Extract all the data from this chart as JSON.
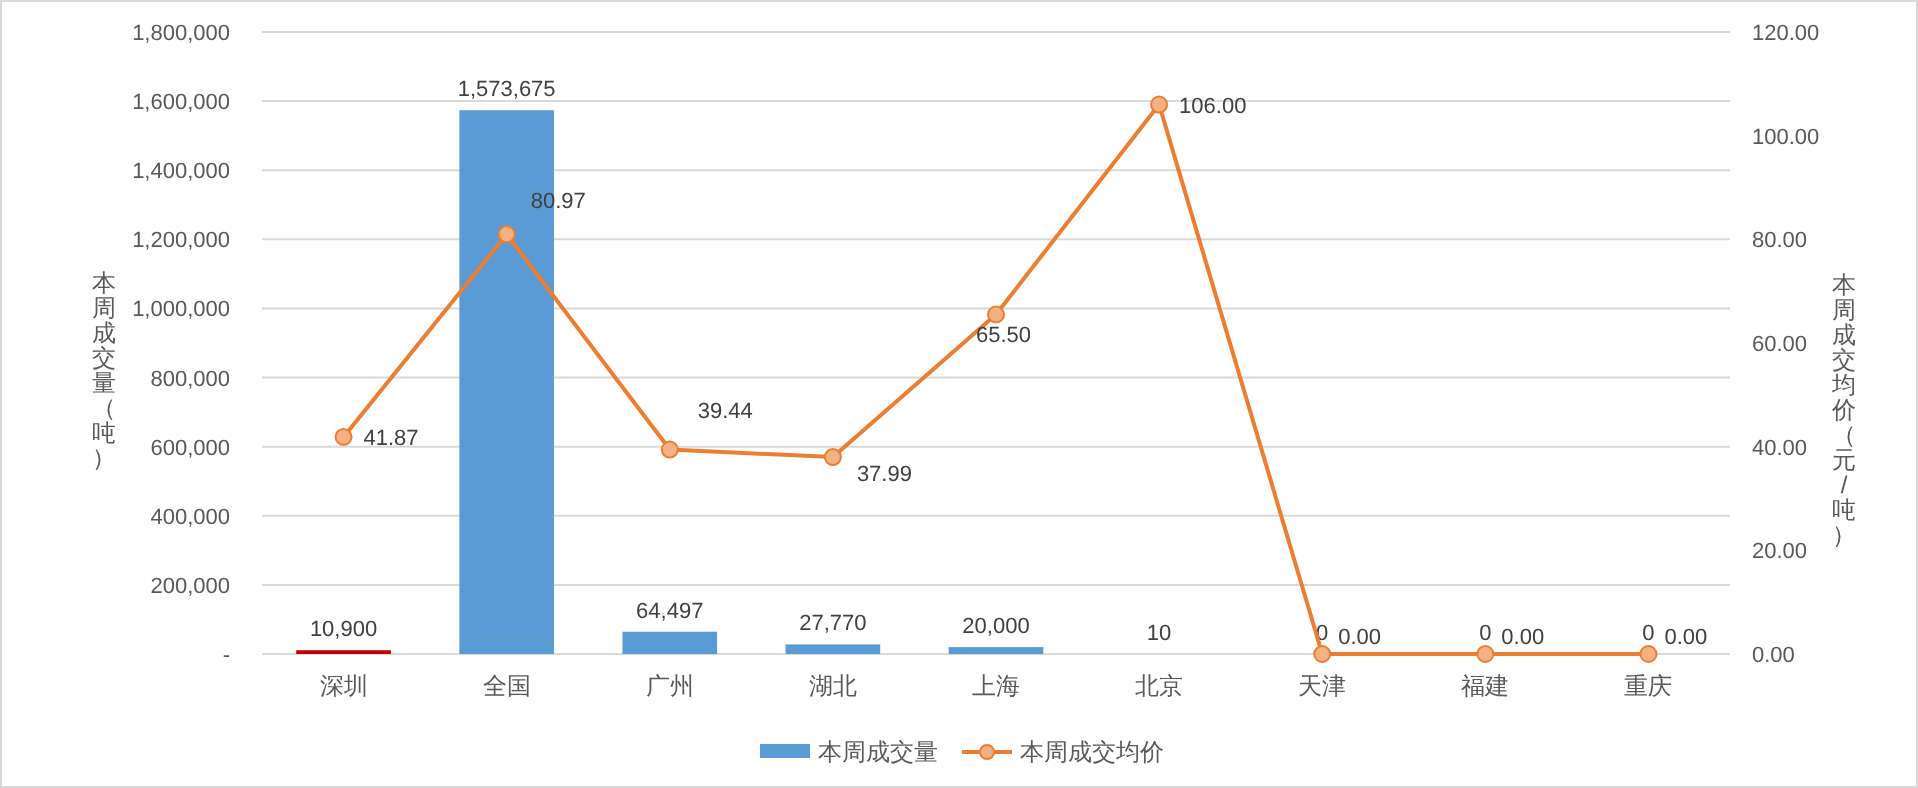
{
  "chart_data": {
    "type": "bar",
    "ylabel": "本周成交量（吨）",
    "y2label": "本周成交均价（元/吨）",
    "categories": [
      "深圳",
      "全国",
      "广州",
      "湖北",
      "上海",
      "北京",
      "天津",
      "福建",
      "重庆"
    ],
    "ylim": [
      0,
      1800000
    ],
    "yticks": [
      {
        "value": 0,
        "label": "-"
      },
      {
        "value": 200000,
        "label": "200,000"
      },
      {
        "value": 400000,
        "label": "400,000"
      },
      {
        "value": 600000,
        "label": "600,000"
      },
      {
        "value": 800000,
        "label": "800,000"
      },
      {
        "value": 1000000,
        "label": "1,000,000"
      },
      {
        "value": 1200000,
        "label": "1,200,000"
      },
      {
        "value": 1400000,
        "label": "1,400,000"
      },
      {
        "value": 1600000,
        "label": "1,600,000"
      },
      {
        "value": 1800000,
        "label": "1,800,000"
      }
    ],
    "y2lim": [
      0,
      120
    ],
    "y2ticks": [
      {
        "value": 0,
        "label": "0.00"
      },
      {
        "value": 20,
        "label": "20.00"
      },
      {
        "value": 40,
        "label": "40.00"
      },
      {
        "value": 60,
        "label": "60.00"
      },
      {
        "value": 80,
        "label": "80.00"
      },
      {
        "value": 100,
        "label": "100.00"
      },
      {
        "value": 120,
        "label": "120.00"
      }
    ],
    "grid": "y",
    "legend": "bottom",
    "series": [
      {
        "name": "本周成交量",
        "color": "#5b9bd5",
        "colors": [
          "#c00000",
          "#5b9bd5",
          "#5b9bd5",
          "#5b9bd5",
          "#5b9bd5",
          "#5b9bd5",
          "#5b9bd5",
          "#5b9bd5",
          "#5b9bd5"
        ],
        "values": [
          10900,
          1573675,
          64497,
          27770,
          20000,
          10,
          0,
          0,
          0
        ],
        "value_labels": [
          "10,900",
          "1,573,675",
          "64,497",
          "27,770",
          "20,000",
          "10",
          "0",
          "0",
          "0"
        ]
      },
      {
        "name": "本周成交均价",
        "type": "line",
        "axis": "y2",
        "color": "#ed7d31",
        "marker": "circle",
        "values": [
          41.87,
          80.97,
          39.44,
          37.99,
          65.5,
          106,
          0,
          0,
          0
        ],
        "value_labels": [
          "41.87",
          "80.97",
          "39.44",
          "37.99",
          "65.50",
          "106.00",
          "0.00",
          "0.00",
          "0.00"
        ]
      }
    ]
  }
}
